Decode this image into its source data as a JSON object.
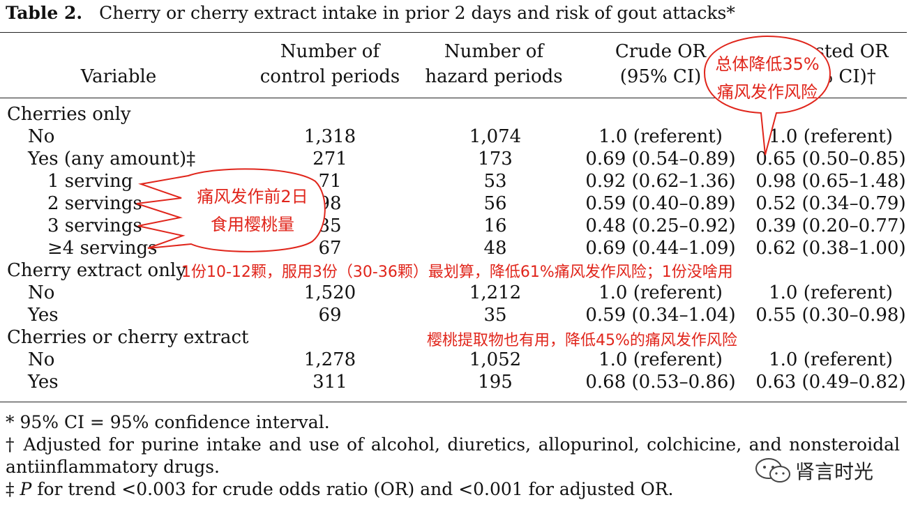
{
  "title": {
    "label": "Table 2.",
    "text": "Cherry or cherry extract intake in prior 2 days and risk of gout attacks*"
  },
  "header": {
    "variable": "Variable",
    "control_l1": "Number of",
    "control_l2": "control periods",
    "hazard_l1": "Number of",
    "hazard_l2": "hazard periods",
    "crude_l1": "Crude OR",
    "crude_l2": "(95% CI)",
    "adjusted_l1": "Adjusted OR",
    "adjusted_l2": "(95% CI)†"
  },
  "sections": [
    {
      "label": "Cherries only",
      "rows": [
        {
          "label": "No",
          "control": "1,318",
          "hazard": "1,074",
          "crude": "1.0 (referent)",
          "adjusted": "1.0 (referent)"
        },
        {
          "label": "Yes (any amount)‡",
          "control": "271",
          "hazard": "173",
          "crude": "0.69 (0.54–0.89)",
          "adjusted": "0.65 (0.50–0.85)"
        },
        {
          "label": "1 serving",
          "control": "71",
          "hazard": "53",
          "crude": "0.92 (0.62–1.36)",
          "adjusted": "0.98 (0.65–1.48)"
        },
        {
          "label": "2 servings",
          "control": "98",
          "hazard": "56",
          "crude": "0.59 (0.40–0.89)",
          "adjusted": "0.52 (0.34–0.79)"
        },
        {
          "label": "3 servings",
          "control": "35",
          "hazard": "16",
          "crude": "0.48 (0.25–0.92)",
          "adjusted": "0.39 (0.20–0.77)"
        },
        {
          "label": "≥4 servings",
          "control": "67",
          "hazard": "48",
          "crude": "0.69 (0.44–1.09)",
          "adjusted": "0.62 (0.38–1.00)"
        }
      ]
    },
    {
      "label": "Cherry extract only",
      "rows": [
        {
          "label": "No",
          "control": "1,520",
          "hazard": "1,212",
          "crude": "1.0 (referent)",
          "adjusted": "1.0 (referent)"
        },
        {
          "label": "Yes",
          "control": "69",
          "hazard": "35",
          "crude": "0.59 (0.34–1.04)",
          "adjusted": "0.55 (0.30–0.98)"
        }
      ]
    },
    {
      "label": "Cherries or cherry extract",
      "rows": [
        {
          "label": "No",
          "control": "1,278",
          "hazard": "1,052",
          "crude": "1.0 (referent)",
          "adjusted": "1.0 (referent)"
        },
        {
          "label": "Yes",
          "control": "311",
          "hazard": "195",
          "crude": "0.68 (0.53–0.86)",
          "adjusted": "0.63 (0.49–0.82)"
        }
      ]
    }
  ],
  "footnotes": {
    "f1": "* 95% CI = 95% confidence interval.",
    "f2a": "† Adjusted for purine intake and use of alcohol, diuretics, allopurinol, colchicine, and nonsteroidal",
    "f2b": "antiinflammatory drugs.",
    "f3_sym": "‡ ",
    "f3_p": "P",
    "f3_rest": " for trend <0.003 for crude odds ratio (OR) and <0.001 for adjusted OR."
  },
  "annotations": {
    "bubble_top_l1": "总体降低35%",
    "bubble_top_l2": "痛风发作风险",
    "bubble_left_l1": "痛风发作前2日",
    "bubble_left_l2": "食用樱桃量",
    "note_servings": "1份10-12颗，服用3份（30-36颗）最划算，降低61%痛风发作风险；1份没啥用",
    "note_extract": "樱桃提取物也有用，降低45%的痛风发作风险",
    "color": "#e0251b"
  },
  "watermark": {
    "text": "肾言时光",
    "icon": "wechat-icon"
  }
}
